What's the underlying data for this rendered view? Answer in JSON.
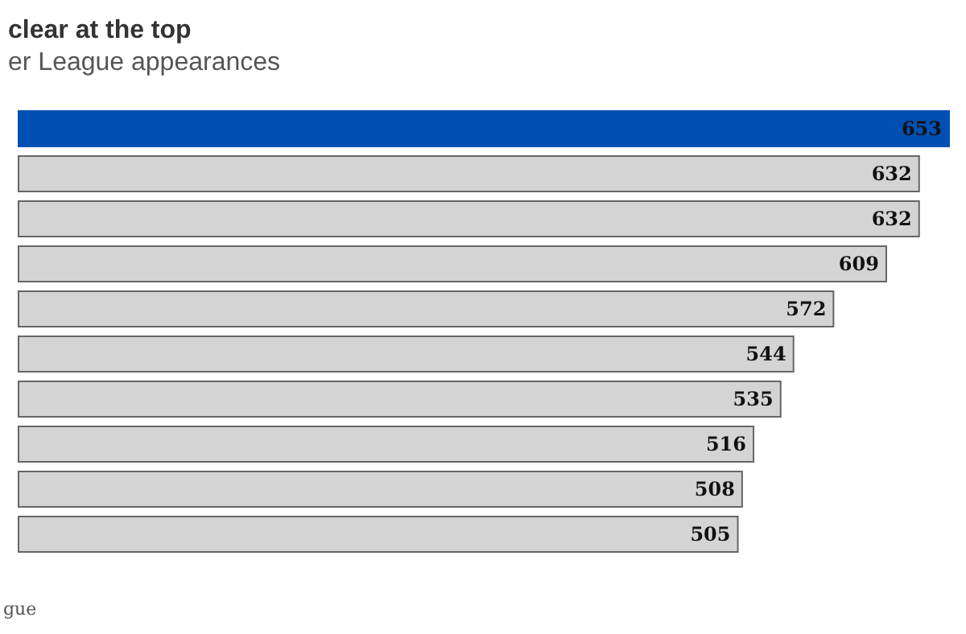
{
  "chart_data": {
    "type": "bar",
    "orientation": "horizontal",
    "title": "clear at the top",
    "subtitle": "er League appearances",
    "categories": [
      null,
      null,
      null,
      null,
      null,
      null,
      null,
      null,
      null,
      null
    ],
    "values": [
      653,
      632,
      632,
      609,
      572,
      544,
      535,
      516,
      508,
      505
    ],
    "colors": [
      "#0050b4",
      "#d4d4d4",
      "#d4d4d4",
      "#d4d4d4",
      "#d4d4d4",
      "#d4d4d4",
      "#d4d4d4",
      "#d4d4d4",
      "#d4d4d4",
      "#d4d4d4"
    ],
    "data_labels": true,
    "annotations": [
      "gue"
    ]
  }
}
